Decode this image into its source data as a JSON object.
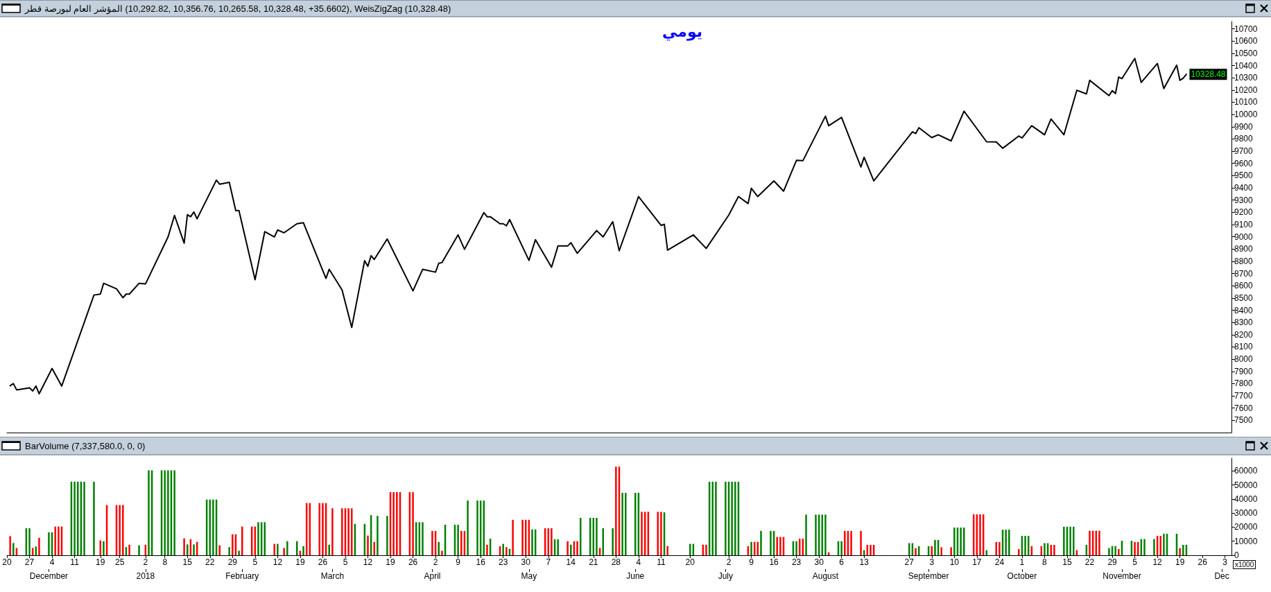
{
  "chart_data": [
    {
      "type": "line",
      "title": "المؤشر العام لبورصة قطر (10,292.82, 10,356.76, 10,265.58, 10,328.48, +35.6602), WeisZigZag (10,328.48)",
      "subtitle": "يومي",
      "color": "#000000",
      "x": [
        "2017-11-21",
        "2017-11-22",
        "2017-11-23",
        "2017-11-27",
        "2017-11-28",
        "2017-11-29",
        "2017-11-30",
        "2017-12-04",
        "2017-12-07",
        "2017-12-17",
        "2017-12-19",
        "2017-12-20",
        "2017-12-24",
        "2017-12-26",
        "2017-12-27",
        "2017-12-28",
        "2017-12-31",
        "2018-01-02",
        "2018-01-09",
        "2018-01-11",
        "2018-01-14",
        "2018-01-15",
        "2018-01-16",
        "2018-01-17",
        "2018-01-18",
        "2018-01-24",
        "2018-01-25",
        "2018-01-28",
        "2018-01-30",
        "2018-01-31",
        "2018-02-05",
        "2018-02-08",
        "2018-02-11",
        "2018-02-12",
        "2018-02-14",
        "2018-02-18",
        "2018-02-20",
        "2018-02-27",
        "2018-02-28",
        "2018-03-04",
        "2018-03-07",
        "2018-03-11",
        "2018-03-12",
        "2018-03-13",
        "2018-03-14",
        "2018-03-18",
        "2018-03-26",
        "2018-03-29",
        "2018-04-02",
        "2018-04-03",
        "2018-04-04",
        "2018-04-09",
        "2018-04-11",
        "2018-04-17",
        "2018-04-18",
        "2018-04-19",
        "2018-04-22",
        "2018-04-23",
        "2018-04-24",
        "2018-04-25",
        "2018-05-01",
        "2018-05-03",
        "2018-05-08",
        "2018-05-10",
        "2018-05-13",
        "2018-05-14",
        "2018-05-16",
        "2018-05-22",
        "2018-05-24",
        "2018-05-27",
        "2018-05-29",
        "2018-06-04",
        "2018-06-11",
        "2018-06-12",
        "2018-06-13",
        "2018-06-21",
        "2018-06-25",
        "2018-07-02",
        "2018-07-05",
        "2018-07-08",
        "2018-07-09",
        "2018-07-11",
        "2018-07-16",
        "2018-07-19",
        "2018-07-23",
        "2018-07-25",
        "2018-08-01",
        "2018-08-02",
        "2018-08-06",
        "2018-08-12",
        "2018-08-13",
        "2018-08-16",
        "2018-08-28",
        "2018-08-29",
        "2018-08-30",
        "2018-09-03",
        "2018-09-05",
        "2018-09-09",
        "2018-09-13",
        "2018-09-20",
        "2018-09-23",
        "2018-09-25",
        "2018-09-30",
        "2018-10-01",
        "2018-10-04",
        "2018-10-08",
        "2018-10-10",
        "2018-10-14",
        "2018-10-18",
        "2018-10-21",
        "2018-10-22",
        "2018-10-28",
        "2018-10-29",
        "2018-10-30",
        "2018-10-31",
        "2018-11-01",
        "2018-11-05",
        "2018-11-07",
        "2018-11-12",
        "2018-11-14",
        "2018-11-18",
        "2018-11-19",
        "2018-11-20",
        "2018-11-21"
      ],
      "values": [
        7783,
        7800,
        7749,
        7766,
        7740,
        7780,
        7717,
        7924,
        7780,
        8524,
        8532,
        8620,
        8575,
        8502,
        8532,
        8532,
        8620,
        8615,
        8999,
        9175,
        8948,
        9181,
        9164,
        9203,
        9147,
        9463,
        9430,
        9446,
        9215,
        9215,
        8649,
        9042,
        8999,
        9056,
        9033,
        9107,
        9115,
        8660,
        8734,
        8566,
        8259,
        8805,
        8759,
        8846,
        8815,
        8982,
        8558,
        8734,
        8711,
        8784,
        8789,
        9016,
        8898,
        9198,
        9164,
        9164,
        9107,
        9107,
        9090,
        9141,
        8807,
        8977,
        8751,
        8925,
        8925,
        8952,
        8865,
        9051,
        8999,
        9124,
        8886,
        9329,
        9093,
        9103,
        8891,
        9016,
        8905,
        9178,
        9329,
        9272,
        9397,
        9329,
        9457,
        9373,
        9625,
        9622,
        9986,
        9908,
        9976,
        9571,
        9650,
        9457,
        9858,
        9844,
        9892,
        9811,
        9834,
        9784,
        10027,
        9777,
        9775,
        9724,
        9824,
        9808,
        9908,
        9834,
        9963,
        9834,
        10198,
        10168,
        10279,
        10154,
        10195,
        10171,
        10306,
        10293,
        10458,
        10262,
        10417,
        10212,
        10403,
        10279,
        10296,
        10328.48
      ],
      "xlim": [
        "2017-11-20",
        "2018-12-05"
      ],
      "ylim": [
        7400,
        10760
      ],
      "yticks": [
        7500,
        7600,
        7700,
        7800,
        7900,
        8000,
        8100,
        8200,
        8300,
        8400,
        8500,
        8600,
        8700,
        8800,
        8900,
        9000,
        9100,
        9200,
        9300,
        9400,
        9500,
        9600,
        9700,
        9800,
        9900,
        10000,
        10100,
        10200,
        10300,
        10400,
        10500,
        10600,
        10700
      ],
      "tick_labels": "y",
      "annotations": [
        {
          "text": "10328.48",
          "x": "2018-11-21",
          "y": 10328.48
        }
      ]
    },
    {
      "type": "bar",
      "title": "BarVolume (7,337,580.0, 0, 0)",
      "ylabel": "x1000",
      "x": [
        "2017-11-21",
        "2017-11-22",
        "2017-11-23",
        "2017-11-26",
        "2017-11-27",
        "2017-11-28",
        "2017-11-29",
        "2017-11-30",
        "2017-12-03",
        "2017-12-04",
        "2017-12-05",
        "2017-12-06",
        "2017-12-07",
        "2017-12-10",
        "2017-12-11",
        "2017-12-12",
        "2017-12-13",
        "2017-12-14",
        "2017-12-17",
        "2017-12-19",
        "2017-12-20",
        "2017-12-21",
        "2017-12-24",
        "2017-12-25",
        "2017-12-26",
        "2017-12-27",
        "2017-12-28",
        "2017-12-31",
        "2018-01-02",
        "2018-01-03",
        "2018-01-04",
        "2018-01-07",
        "2018-01-08",
        "2018-01-09",
        "2018-01-10",
        "2018-01-11",
        "2018-01-14",
        "2018-01-15",
        "2018-01-16",
        "2018-01-17",
        "2018-01-18",
        "2018-01-21",
        "2018-01-22",
        "2018-01-23",
        "2018-01-24",
        "2018-01-25",
        "2018-01-28",
        "2018-01-29",
        "2018-01-30",
        "2018-01-31",
        "2018-02-01",
        "2018-02-04",
        "2018-02-05",
        "2018-02-06",
        "2018-02-07",
        "2018-02-08",
        "2018-02-11",
        "2018-02-12",
        "2018-02-14",
        "2018-02-15",
        "2018-02-18",
        "2018-02-19",
        "2018-02-20",
        "2018-02-21",
        "2018-02-22",
        "2018-02-25",
        "2018-02-26",
        "2018-02-27",
        "2018-02-28",
        "2018-03-01",
        "2018-03-04",
        "2018-03-05",
        "2018-03-06",
        "2018-03-07",
        "2018-03-08",
        "2018-03-11",
        "2018-03-12",
        "2018-03-13",
        "2018-03-14",
        "2018-03-15",
        "2018-03-18",
        "2018-03-19",
        "2018-03-20",
        "2018-03-21",
        "2018-03-22",
        "2018-03-25",
        "2018-03-26",
        "2018-03-27",
        "2018-03-28",
        "2018-03-29",
        "2018-04-01",
        "2018-04-02",
        "2018-04-03",
        "2018-04-04",
        "2018-04-05",
        "2018-04-08",
        "2018-04-09",
        "2018-04-10",
        "2018-04-11",
        "2018-04-12",
        "2018-04-15",
        "2018-04-16",
        "2018-04-17",
        "2018-04-18",
        "2018-04-19",
        "2018-04-22",
        "2018-04-23",
        "2018-04-24",
        "2018-04-25",
        "2018-04-26",
        "2018-04-29",
        "2018-04-30",
        "2018-05-01",
        "2018-05-02",
        "2018-05-03",
        "2018-05-06",
        "2018-05-07",
        "2018-05-08",
        "2018-05-09",
        "2018-05-10",
        "2018-05-13",
        "2018-05-14",
        "2018-05-15",
        "2018-05-16",
        "2018-05-17",
        "2018-05-20",
        "2018-05-21",
        "2018-05-22",
        "2018-05-23",
        "2018-05-24",
        "2018-05-27",
        "2018-05-28",
        "2018-05-29",
        "2018-05-30",
        "2018-05-31",
        "2018-06-03",
        "2018-06-04",
        "2018-06-05",
        "2018-06-06",
        "2018-06-07",
        "2018-06-10",
        "2018-06-11",
        "2018-06-12",
        "2018-06-13",
        "2018-06-20",
        "2018-06-21",
        "2018-06-24",
        "2018-06-25",
        "2018-06-26",
        "2018-06-27",
        "2018-06-28",
        "2018-07-01",
        "2018-07-02",
        "2018-07-03",
        "2018-07-04",
        "2018-07-05",
        "2018-07-08",
        "2018-07-09",
        "2018-07-10",
        "2018-07-11",
        "2018-07-12",
        "2018-07-15",
        "2018-07-16",
        "2018-07-17",
        "2018-07-18",
        "2018-07-19",
        "2018-07-22",
        "2018-07-23",
        "2018-07-24",
        "2018-07-25",
        "2018-07-26",
        "2018-07-29",
        "2018-07-30",
        "2018-07-31",
        "2018-08-01",
        "2018-08-02",
        "2018-08-05",
        "2018-08-06",
        "2018-08-07",
        "2018-08-08",
        "2018-08-09",
        "2018-08-12",
        "2018-08-13",
        "2018-08-14",
        "2018-08-15",
        "2018-08-16",
        "2018-08-27",
        "2018-08-28",
        "2018-08-29",
        "2018-08-30",
        "2018-09-02",
        "2018-09-03",
        "2018-09-04",
        "2018-09-05",
        "2018-09-06",
        "2018-09-09",
        "2018-09-10",
        "2018-09-11",
        "2018-09-12",
        "2018-09-13",
        "2018-09-16",
        "2018-09-17",
        "2018-09-18",
        "2018-09-19",
        "2018-09-20",
        "2018-09-23",
        "2018-09-24",
        "2018-09-25",
        "2018-09-26",
        "2018-09-27",
        "2018-09-30",
        "2018-10-01",
        "2018-10-02",
        "2018-10-03",
        "2018-10-04",
        "2018-10-07",
        "2018-10-08",
        "2018-10-09",
        "2018-10-10",
        "2018-10-11",
        "2018-10-14",
        "2018-10-15",
        "2018-10-16",
        "2018-10-17",
        "2018-10-18",
        "2018-10-21",
        "2018-10-22",
        "2018-10-23",
        "2018-10-24",
        "2018-10-25",
        "2018-10-28",
        "2018-10-29",
        "2018-10-30",
        "2018-10-31",
        "2018-11-01",
        "2018-11-04",
        "2018-11-05",
        "2018-11-06",
        "2018-11-07",
        "2018-11-08",
        "2018-11-11",
        "2018-11-12",
        "2018-11-13",
        "2018-11-14",
        "2018-11-15",
        "2018-11-18",
        "2018-11-19",
        "2018-11-20",
        "2018-11-21"
      ],
      "values": [
        13600,
        8700,
        5200,
        19200,
        19200,
        5200,
        6200,
        12400,
        16300,
        16300,
        20400,
        20400,
        20400,
        52300,
        52300,
        52300,
        52300,
        52300,
        52300,
        10600,
        10000,
        35700,
        35700,
        35700,
        35700,
        5800,
        7500,
        7100,
        7500,
        60400,
        60400,
        60400,
        60400,
        60400,
        60400,
        60400,
        12000,
        7700,
        11400,
        7700,
        9500,
        39600,
        39600,
        39600,
        39600,
        7100,
        5800,
        14900,
        14900,
        3200,
        20400,
        20400,
        20400,
        23500,
        23500,
        23500,
        8100,
        8100,
        5200,
        10000,
        10000,
        3200,
        6500,
        37100,
        37100,
        37100,
        37100,
        37100,
        7500,
        33400,
        33400,
        33400,
        33400,
        33400,
        22300,
        22300,
        14000,
        28500,
        9500,
        28000,
        28000,
        44900,
        44900,
        44900,
        44900,
        44900,
        44900,
        23500,
        23500,
        23500,
        17300,
        17300,
        9500,
        3200,
        21700,
        21700,
        21700,
        17300,
        17300,
        38900,
        38900,
        38900,
        38900,
        7500,
        11800,
        6400,
        8100,
        5800,
        4600,
        25200,
        25200,
        25200,
        25200,
        18400,
        18400,
        19200,
        19200,
        19200,
        11400,
        11400,
        10000,
        7500,
        10000,
        10000,
        26600,
        26600,
        26600,
        26600,
        5200,
        19200,
        19200,
        63000,
        63000,
        44400,
        44400,
        44400,
        44400,
        30900,
        30900,
        30900,
        30900,
        30900,
        30500,
        6500,
        8100,
        8100,
        7500,
        7500,
        52300,
        52300,
        52300,
        52300,
        52300,
        52300,
        52300,
        52300,
        6500,
        9500,
        9500,
        9500,
        17300,
        17300,
        17300,
        13000,
        13000,
        13000,
        10000,
        10000,
        11800,
        11800,
        28900,
        28900,
        28900,
        28900,
        28900,
        2100,
        10000,
        10000,
        17300,
        17300,
        17300,
        17300,
        3600,
        7400,
        7400,
        7400,
        8600,
        8600,
        5100,
        6500,
        6500,
        6500,
        10900,
        10900,
        5700,
        5700,
        19700,
        19700,
        19700,
        19700,
        29100,
        29100,
        29100,
        29100,
        3600,
        9400,
        9400,
        18200,
        18200,
        18200,
        4400,
        13800,
        13800,
        13800,
        6500,
        6500,
        8600,
        8600,
        7400,
        7400,
        20300,
        20300,
        20300,
        20300,
        3600,
        7400,
        17400,
        17400,
        17400,
        17400,
        5100,
        6500,
        6500,
        4400,
        10300,
        10300,
        9400,
        9400,
        11500,
        11500,
        11500,
        13800,
        13800,
        15300,
        15300,
        15300,
        5100,
        7400,
        7400
      ],
      "colors": [
        "#ff0000",
        "#008000",
        "#ff0000",
        "#008000",
        "#008000",
        "#ff0000",
        "#008000",
        "#ff0000",
        "#008000",
        "#008000",
        "#ff0000",
        "#ff0000",
        "#ff0000",
        "#008000",
        "#008000",
        "#008000",
        "#008000",
        "#008000",
        "#008000",
        "#ff0000",
        "#008000",
        "#ff0000",
        "#ff0000",
        "#ff0000",
        "#ff0000",
        "#008000",
        "#ff0000",
        "#008000",
        "#ff0000",
        "#008000",
        "#008000",
        "#008000",
        "#008000",
        "#008000",
        "#008000",
        "#008000",
        "#ff0000",
        "#008000",
        "#ff0000",
        "#008000",
        "#ff0000",
        "#008000",
        "#008000",
        "#008000",
        "#008000",
        "#ff0000",
        "#008000",
        "#ff0000",
        "#ff0000",
        "#008000",
        "#ff0000",
        "#ff0000",
        "#ff0000",
        "#008000",
        "#008000",
        "#008000",
        "#ff0000",
        "#008000",
        "#ff0000",
        "#008000",
        "#008000",
        "#ff0000",
        "#008000",
        "#ff0000",
        "#ff0000",
        "#ff0000",
        "#ff0000",
        "#ff0000",
        "#008000",
        "#ff0000",
        "#ff0000",
        "#ff0000",
        "#ff0000",
        "#ff0000",
        "#008000",
        "#008000",
        "#ff0000",
        "#008000",
        "#ff0000",
        "#008000",
        "#008000",
        "#ff0000",
        "#ff0000",
        "#ff0000",
        "#ff0000",
        "#ff0000",
        "#ff0000",
        "#008000",
        "#008000",
        "#008000",
        "#ff0000",
        "#ff0000",
        "#008000",
        "#ff0000",
        "#008000",
        "#008000",
        "#008000",
        "#ff0000",
        "#ff0000",
        "#008000",
        "#008000",
        "#008000",
        "#008000",
        "#ff0000",
        "#008000",
        "#ff0000",
        "#008000",
        "#ff0000",
        "#008000",
        "#ff0000",
        "#ff0000",
        "#ff0000",
        "#ff0000",
        "#008000",
        "#008000",
        "#ff0000",
        "#ff0000",
        "#ff0000",
        "#008000",
        "#008000",
        "#ff0000",
        "#008000",
        "#ff0000",
        "#ff0000",
        "#008000",
        "#008000",
        "#008000",
        "#008000",
        "#ff0000",
        "#008000",
        "#008000",
        "#ff0000",
        "#ff0000",
        "#008000",
        "#008000",
        "#008000",
        "#008000",
        "#ff0000",
        "#ff0000",
        "#ff0000",
        "#ff0000",
        "#ff0000",
        "#008000",
        "#ff0000",
        "#008000",
        "#008000",
        "#ff0000",
        "#ff0000",
        "#008000",
        "#008000",
        "#008000",
        "#008000",
        "#008000",
        "#008000",
        "#008000",
        "#008000",
        "#ff0000",
        "#008000",
        "#ff0000",
        "#ff0000",
        "#008000",
        "#008000",
        "#008000",
        "#ff0000",
        "#ff0000",
        "#ff0000",
        "#008000",
        "#008000",
        "#ff0000",
        "#ff0000",
        "#008000",
        "#008000",
        "#008000",
        "#008000",
        "#008000",
        "#ff0000",
        "#008000",
        "#008000",
        "#ff0000",
        "#ff0000",
        "#ff0000",
        "#ff0000",
        "#008000",
        "#ff0000",
        "#ff0000",
        "#ff0000",
        "#008000",
        "#008000",
        "#ff0000",
        "#008000",
        "#008000",
        "#ff0000",
        "#008000",
        "#008000",
        "#ff0000",
        "#ff0000",
        "#008000",
        "#008000",
        "#008000",
        "#008000",
        "#ff0000",
        "#ff0000",
        "#ff0000",
        "#ff0000",
        "#008000",
        "#ff0000",
        "#ff0000",
        "#008000",
        "#008000",
        "#008000",
        "#ff0000",
        "#008000",
        "#008000",
        "#008000",
        "#ff0000",
        "#ff0000",
        "#008000",
        "#008000",
        "#ff0000",
        "#ff0000",
        "#008000",
        "#008000",
        "#008000",
        "#008000",
        "#ff0000",
        "#008000",
        "#ff0000",
        "#ff0000",
        "#ff0000",
        "#ff0000",
        "#008000",
        "#008000",
        "#008000",
        "#ff0000",
        "#008000",
        "#008000",
        "#ff0000",
        "#ff0000",
        "#008000",
        "#008000",
        "#008000",
        "#ff0000",
        "#ff0000",
        "#008000",
        "#008000",
        "#008000",
        "#ff0000",
        "#008000",
        "#008000"
      ],
      "xlim": [
        "2017-11-20",
        "2018-12-05"
      ],
      "xticks": [
        {
          "value": "2017-11-20",
          "label": "20"
        },
        {
          "value": "2017-11-27",
          "label": "27"
        },
        {
          "value": "2017-12-04",
          "label": "4"
        },
        {
          "value": "2017-12-11",
          "label": "11"
        },
        {
          "value": "2017-12-19",
          "label": "19"
        },
        {
          "value": "2017-12-25",
          "label": "25"
        },
        {
          "value": "2018-01-02",
          "label": "2"
        },
        {
          "value": "2018-01-08",
          "label": "8"
        },
        {
          "value": "2018-01-15",
          "label": "15"
        },
        {
          "value": "2018-01-22",
          "label": "22"
        },
        {
          "value": "2018-01-29",
          "label": "29"
        },
        {
          "value": "2018-02-05",
          "label": "5"
        },
        {
          "value": "2018-02-12",
          "label": "12"
        },
        {
          "value": "2018-02-19",
          "label": "19"
        },
        {
          "value": "2018-02-26",
          "label": "26"
        },
        {
          "value": "2018-03-05",
          "label": "5"
        },
        {
          "value": "2018-03-12",
          "label": "12"
        },
        {
          "value": "2018-03-19",
          "label": "19"
        },
        {
          "value": "2018-03-26",
          "label": "26"
        },
        {
          "value": "2018-04-02",
          "label": "2"
        },
        {
          "value": "2018-04-09",
          "label": "9"
        },
        {
          "value": "2018-04-16",
          "label": "16"
        },
        {
          "value": "2018-04-23",
          "label": "23"
        },
        {
          "value": "2018-04-30",
          "label": "30"
        },
        {
          "value": "2018-05-07",
          "label": "7"
        },
        {
          "value": "2018-05-14",
          "label": "14"
        },
        {
          "value": "2018-05-21",
          "label": "21"
        },
        {
          "value": "2018-05-28",
          "label": "28"
        },
        {
          "value": "2018-06-04",
          "label": "4"
        },
        {
          "value": "2018-06-11",
          "label": "11"
        },
        {
          "value": "2018-06-20",
          "label": "20"
        },
        {
          "value": "2018-07-02",
          "label": "2"
        },
        {
          "value": "2018-07-09",
          "label": "9"
        },
        {
          "value": "2018-07-16",
          "label": "16"
        },
        {
          "value": "2018-07-23",
          "label": "23"
        },
        {
          "value": "2018-07-30",
          "label": "30"
        },
        {
          "value": "2018-08-06",
          "label": "6"
        },
        {
          "value": "2018-08-13",
          "label": "13"
        },
        {
          "value": "2018-08-27",
          "label": "27"
        },
        {
          "value": "2018-09-03",
          "label": "3"
        },
        {
          "value": "2018-09-10",
          "label": "10"
        },
        {
          "value": "2018-09-17",
          "label": "17"
        },
        {
          "value": "2018-09-24",
          "label": "24"
        },
        {
          "value": "2018-10-01",
          "label": "1"
        },
        {
          "value": "2018-10-08",
          "label": "8"
        },
        {
          "value": "2018-10-15",
          "label": "15"
        },
        {
          "value": "2018-10-22",
          "label": "22"
        },
        {
          "value": "2018-10-29",
          "label": "29"
        },
        {
          "value": "2018-11-05",
          "label": "5"
        },
        {
          "value": "2018-11-12",
          "label": "12"
        },
        {
          "value": "2018-11-19",
          "label": "19"
        },
        {
          "value": "2018-11-26",
          "label": "26"
        },
        {
          "value": "2018-12-03",
          "label": "3"
        }
      ],
      "x2lim": [
        "2017-11-20",
        "2018-12-05"
      ],
      "x2ticks": [
        {
          "value": "2017-12-03",
          "label": "December"
        },
        {
          "value": "2018-01-02",
          "label": "2018"
        },
        {
          "value": "2018-02-01",
          "label": "February"
        },
        {
          "value": "2018-03-01",
          "label": "March"
        },
        {
          "value": "2018-04-01",
          "label": "April"
        },
        {
          "value": "2018-05-01",
          "label": "May"
        },
        {
          "value": "2018-06-03",
          "label": "June"
        },
        {
          "value": "2018-07-01",
          "label": "July"
        },
        {
          "value": "2018-08-01",
          "label": "August"
        },
        {
          "value": "2018-09-02",
          "label": "September"
        },
        {
          "value": "2018-10-01",
          "label": "October"
        },
        {
          "value": "2018-11-01",
          "label": "November"
        },
        {
          "value": "2018-12-02",
          "label": "Dec"
        }
      ],
      "ylim": [
        0,
        69000
      ],
      "yticks": [
        0,
        10000,
        20000,
        30000,
        40000,
        50000,
        60000
      ]
    }
  ]
}
